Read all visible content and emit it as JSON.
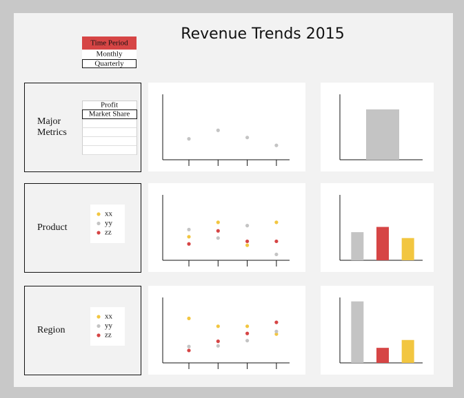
{
  "header": {
    "title": "Revenue Trends 2015"
  },
  "time_period": {
    "label": "Time Period",
    "options": [
      "Monthly",
      "Quarterly"
    ]
  },
  "panels": [
    {
      "label": "Major Metrics",
      "metrics": [
        "Profit",
        "Market Share"
      ]
    },
    {
      "label": "Product"
    },
    {
      "label": "Region"
    }
  ],
  "chart_data": [
    {
      "type": "dot",
      "categories": [
        null,
        null,
        null,
        null
      ],
      "ylim": [
        0,
        100
      ],
      "series": [
        {
          "color": "#c4c4c4",
          "values": [
            32,
            45,
            34,
            22
          ]
        }
      ]
    },
    {
      "type": "bar",
      "categories": [
        null
      ],
      "ylim": [
        0,
        100
      ],
      "values": [
        77
      ],
      "colors": [
        "#c4c4c4"
      ]
    },
    {
      "type": "dot",
      "categories": [
        null,
        null,
        null,
        null
      ],
      "ylim": [
        0,
        100
      ],
      "series": [
        {
          "name": "xx",
          "color": "#f2c640",
          "values": [
            36,
            58,
            23,
            58
          ]
        },
        {
          "name": "yy",
          "color": "#c4c4c4",
          "values": [
            47,
            34,
            53,
            9
          ]
        },
        {
          "name": "zz",
          "color": "#d64545",
          "values": [
            25,
            45,
            29,
            29
          ]
        }
      ]
    },
    {
      "type": "bar",
      "categories": [
        null,
        null,
        null
      ],
      "ylim": [
        0,
        100
      ],
      "values": [
        43,
        51,
        34
      ],
      "colors": [
        "#c4c4c4",
        "#d64545",
        "#f2c640"
      ]
    },
    {
      "type": "dot",
      "categories": [
        null,
        null,
        null,
        null
      ],
      "ylim": [
        0,
        100
      ],
      "series": [
        {
          "name": "xx",
          "color": "#f2c640",
          "values": [
            68,
            56,
            56,
            44
          ]
        },
        {
          "name": "yy",
          "color": "#c4c4c4",
          "values": [
            25,
            26,
            34,
            48
          ]
        },
        {
          "name": "zz",
          "color": "#d64545",
          "values": [
            19,
            33,
            45,
            62
          ]
        }
      ]
    },
    {
      "type": "bar",
      "categories": [
        null,
        null,
        null
      ],
      "ylim": [
        0,
        100
      ],
      "values": [
        94,
        23,
        35
      ],
      "colors": [
        "#c4c4c4",
        "#d64545",
        "#f2c640"
      ]
    }
  ]
}
